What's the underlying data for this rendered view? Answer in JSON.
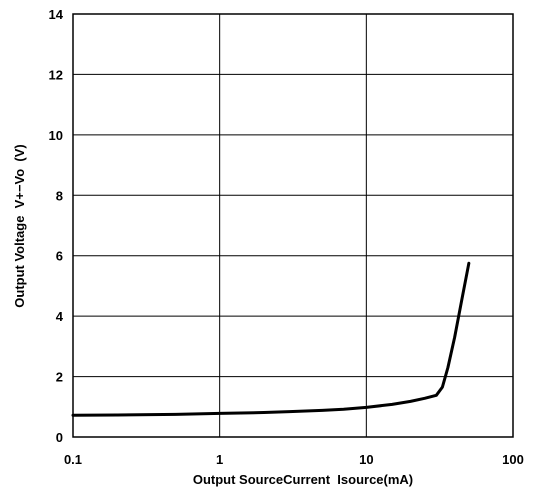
{
  "chart_data": {
    "type": "line",
    "title": "",
    "xlabel": "Output SourceCurrent  Isource(mA)",
    "ylabel": "Output Voltage  V+−Vo  (V)",
    "x_scale": "log",
    "xlim": [
      0.1,
      100
    ],
    "ylim": [
      0,
      14
    ],
    "x_ticks": [
      "0.1",
      "1",
      "10",
      "100"
    ],
    "y_ticks": [
      "0",
      "2",
      "4",
      "6",
      "8",
      "10",
      "12",
      "14"
    ],
    "grid": true,
    "legend": "none",
    "series": [
      {
        "name": "",
        "x": [
          0.1,
          0.2,
          0.5,
          1,
          2,
          3,
          5,
          7,
          10,
          15,
          20,
          25,
          30,
          33,
          36,
          40,
          45,
          50
        ],
        "y": [
          0.72,
          0.73,
          0.75,
          0.78,
          0.81,
          0.84,
          0.88,
          0.92,
          0.98,
          1.08,
          1.18,
          1.28,
          1.38,
          1.65,
          2.3,
          3.3,
          4.6,
          5.75
        ]
      }
    ],
    "line_color": "#000000"
  }
}
